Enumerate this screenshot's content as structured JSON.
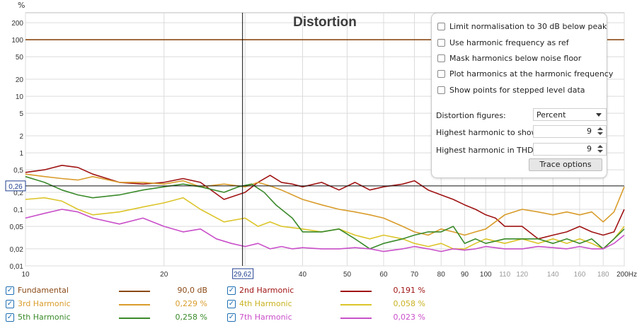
{
  "unit": "%",
  "chart_data": {
    "type": "line",
    "title": "Distortion",
    "x_scale": "log",
    "y_scale": "log",
    "xlim": [
      10,
      200
    ],
    "ylim": [
      0.01,
      300
    ],
    "x_ticks": [
      10,
      20,
      30,
      40,
      50,
      60,
      70,
      80,
      90,
      100,
      110,
      120,
      140,
      160,
      180,
      200
    ],
    "x_tick_labels": [
      "10",
      "20",
      "",
      "40",
      "50",
      "60",
      "70",
      "80",
      "90",
      "100",
      "110",
      "120",
      "140",
      "160",
      "180",
      "200Hz"
    ],
    "y_ticks": [
      0.01,
      0.02,
      0.05,
      0.1,
      0.2,
      0.5,
      1,
      2,
      5,
      10,
      20,
      50,
      100,
      200
    ],
    "y_tick_labels": [
      "0,01",
      "0,02",
      "0,05",
      "0,1",
      "0,2",
      "0,5",
      "1",
      "2",
      "5",
      "10",
      "20",
      "50",
      "100",
      "200"
    ],
    "cursor": {
      "x": 29.62,
      "y": 0.26,
      "x_label": "29,62",
      "y_label": "0,26"
    },
    "series": [
      {
        "name": "Fundamental",
        "color": "#8b4a16",
        "flat": true,
        "x": [
          10,
          200
        ],
        "y": [
          100,
          100
        ]
      },
      {
        "name": "2nd Harmonic",
        "color": "#a01414",
        "x": [
          10,
          11,
          12,
          13,
          14,
          16,
          18,
          20,
          22,
          24,
          27,
          30,
          32,
          34,
          36,
          38,
          40,
          44,
          48,
          52,
          56,
          60,
          66,
          70,
          75,
          80,
          85,
          90,
          95,
          100,
          105,
          110,
          120,
          130,
          140,
          150,
          160,
          170,
          180,
          190,
          200
        ],
        "y": [
          0.45,
          0.5,
          0.6,
          0.55,
          0.42,
          0.3,
          0.28,
          0.3,
          0.35,
          0.3,
          0.15,
          0.2,
          0.3,
          0.4,
          0.3,
          0.28,
          0.25,
          0.3,
          0.22,
          0.3,
          0.22,
          0.25,
          0.28,
          0.32,
          0.22,
          0.18,
          0.15,
          0.12,
          0.1,
          0.08,
          0.07,
          0.05,
          0.05,
          0.03,
          0.035,
          0.04,
          0.05,
          0.04,
          0.035,
          0.04,
          0.1
        ]
      },
      {
        "name": "3rd Harmonic",
        "color": "#d99c2b",
        "x": [
          10,
          11,
          12,
          13,
          14,
          16,
          18,
          20,
          22,
          24,
          27,
          30,
          32,
          34,
          36,
          40,
          44,
          48,
          52,
          56,
          60,
          66,
          70,
          75,
          80,
          85,
          90,
          95,
          100,
          110,
          120,
          130,
          140,
          150,
          160,
          170,
          180,
          190,
          200
        ],
        "y": [
          0.42,
          0.38,
          0.35,
          0.33,
          0.38,
          0.3,
          0.3,
          0.28,
          0.32,
          0.25,
          0.28,
          0.25,
          0.3,
          0.26,
          0.22,
          0.15,
          0.12,
          0.1,
          0.09,
          0.08,
          0.07,
          0.05,
          0.04,
          0.035,
          0.045,
          0.04,
          0.035,
          0.04,
          0.045,
          0.08,
          0.1,
          0.09,
          0.08,
          0.09,
          0.08,
          0.09,
          0.06,
          0.09,
          0.25
        ]
      },
      {
        "name": "4th Harmonic",
        "color": "#dcc52a",
        "x": [
          10,
          11,
          12,
          13,
          14,
          16,
          18,
          20,
          22,
          24,
          27,
          30,
          32,
          34,
          36,
          40,
          44,
          48,
          52,
          56,
          60,
          66,
          70,
          75,
          80,
          85,
          90,
          95,
          100,
          110,
          120,
          130,
          140,
          150,
          160,
          170,
          180,
          190,
          200
        ],
        "y": [
          0.15,
          0.16,
          0.14,
          0.1,
          0.08,
          0.09,
          0.11,
          0.13,
          0.16,
          0.1,
          0.06,
          0.07,
          0.05,
          0.06,
          0.05,
          0.045,
          0.04,
          0.045,
          0.035,
          0.03,
          0.035,
          0.03,
          0.025,
          0.022,
          0.025,
          0.02,
          0.02,
          0.025,
          0.03,
          0.025,
          0.03,
          0.025,
          0.03,
          0.025,
          0.03,
          0.025,
          0.02,
          0.03,
          0.05
        ]
      },
      {
        "name": "5th Harmonic",
        "color": "#3a8a2a",
        "x": [
          10,
          11,
          12,
          13,
          14,
          16,
          18,
          20,
          22,
          24,
          27,
          29,
          31,
          33,
          35,
          38,
          40,
          44,
          48,
          52,
          56,
          60,
          66,
          70,
          75,
          80,
          85,
          90,
          95,
          100,
          110,
          120,
          130,
          140,
          150,
          160,
          170,
          180,
          190,
          200
        ],
        "y": [
          0.38,
          0.3,
          0.22,
          0.18,
          0.16,
          0.18,
          0.22,
          0.25,
          0.28,
          0.25,
          0.2,
          0.25,
          0.28,
          0.2,
          0.12,
          0.07,
          0.04,
          0.04,
          0.045,
          0.03,
          0.02,
          0.025,
          0.03,
          0.035,
          0.04,
          0.04,
          0.05,
          0.025,
          0.03,
          0.025,
          0.03,
          0.03,
          0.03,
          0.025,
          0.03,
          0.025,
          0.03,
          0.02,
          0.03,
          0.045
        ]
      },
      {
        "name": "7th Harmonic",
        "color": "#c94fc9",
        "x": [
          10,
          11,
          12,
          13,
          14,
          16,
          18,
          20,
          22,
          24,
          26,
          28,
          30,
          32,
          34,
          36,
          38,
          40,
          44,
          48,
          52,
          56,
          60,
          66,
          70,
          75,
          80,
          85,
          90,
          95,
          100,
          110,
          120,
          130,
          140,
          150,
          160,
          170,
          180,
          190,
          200
        ],
        "y": [
          0.07,
          0.085,
          0.1,
          0.09,
          0.07,
          0.055,
          0.07,
          0.05,
          0.04,
          0.045,
          0.03,
          0.025,
          0.022,
          0.025,
          0.02,
          0.022,
          0.02,
          0.021,
          0.02,
          0.02,
          0.021,
          0.02,
          0.018,
          0.02,
          0.022,
          0.02,
          0.018,
          0.02,
          0.019,
          0.02,
          0.022,
          0.02,
          0.02,
          0.022,
          0.021,
          0.02,
          0.022,
          0.02,
          0.02,
          0.025,
          0.035
        ]
      }
    ]
  },
  "options_panel": {
    "checkboxes": [
      "Limit normalisation to 30 dB below peak",
      "Use harmonic frequency as ref",
      "Mask harmonics below noise floor",
      "Plot harmonics at the harmonic frequency",
      "Show points for stepped level data"
    ],
    "distortion_figures_label": "Distortion figures:",
    "distortion_figures_value": "Percent",
    "highest_show_label": "Highest harmonic to show:",
    "highest_show_value": "9",
    "highest_thd_label": "Highest harmonic in THD:",
    "highest_thd_value": "9",
    "trace_options_label": "Trace options"
  },
  "legend": [
    {
      "name": "Fundamental",
      "value": "90,0 dB",
      "color": "#8b4a16",
      "checked": true
    },
    {
      "name": "2nd Harmonic",
      "value": "0,191 %",
      "color": "#a01414",
      "checked": true
    },
    {
      "name": "3rd Harmonic",
      "value": "0,229 %",
      "color": "#d99c2b",
      "checked": true
    },
    {
      "name": "4th Harmonic",
      "value": "0,058 %",
      "color": "#dcc52a",
      "checked": true
    },
    {
      "name": "5th Harmonic",
      "value": "0,258 %",
      "color": "#3a8a2a",
      "checked": true
    },
    {
      "name": "7th Harmonic",
      "value": "0,023 %",
      "color": "#c94fc9",
      "checked": true
    }
  ]
}
